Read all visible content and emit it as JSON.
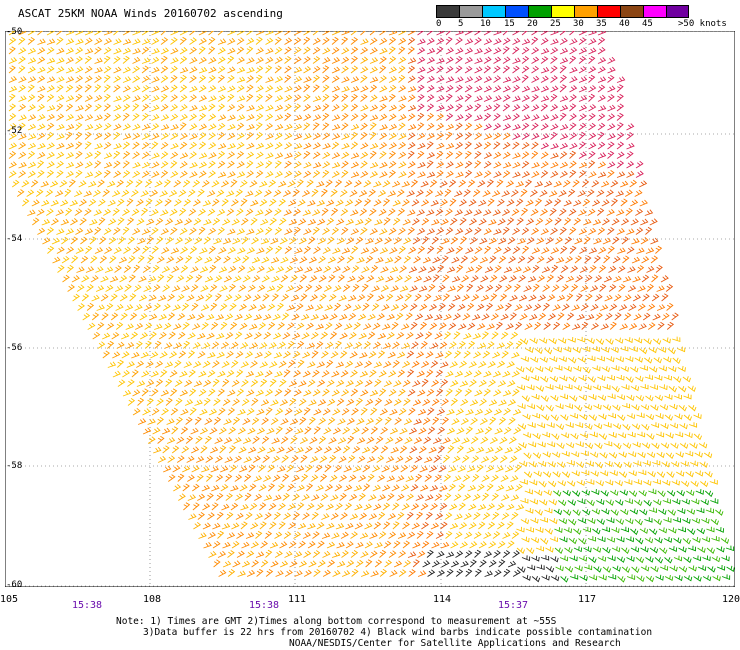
{
  "title": "ASCAT 25KM NOAA Winds 20160702 ascending",
  "scale": {
    "labels": [
      "0",
      "5",
      "10",
      "15",
      "20",
      "25",
      "30",
      "35",
      "40",
      "45",
      ">50 knots"
    ],
    "colors": [
      "#3a3a3a",
      "#9a9a9a",
      "#00c8ff",
      "#0050ff",
      "#00a000",
      "#ffff00",
      "#ffa000",
      "#ff0000",
      "#8b4513",
      "#ff00ff",
      "#7000a0"
    ]
  },
  "latitudes": [
    "-50",
    "-52",
    "-54",
    "-56",
    "-58",
    "-60"
  ],
  "longitudes": [
    "105",
    "108",
    "111",
    "114",
    "117",
    "120"
  ],
  "times": [
    "15:38",
    "15:38",
    "15:37"
  ],
  "notes": {
    "line1": "Note: 1) Times are GMT 2)Times along bottom correspond to measurement at ~55S",
    "line2": "3)Data buffer is 22 hrs from 20160702 4) Black wind barbs indicate possible contamination",
    "line3": "NOAA/NESDIS/Center for Satellite Applications and Research"
  }
}
